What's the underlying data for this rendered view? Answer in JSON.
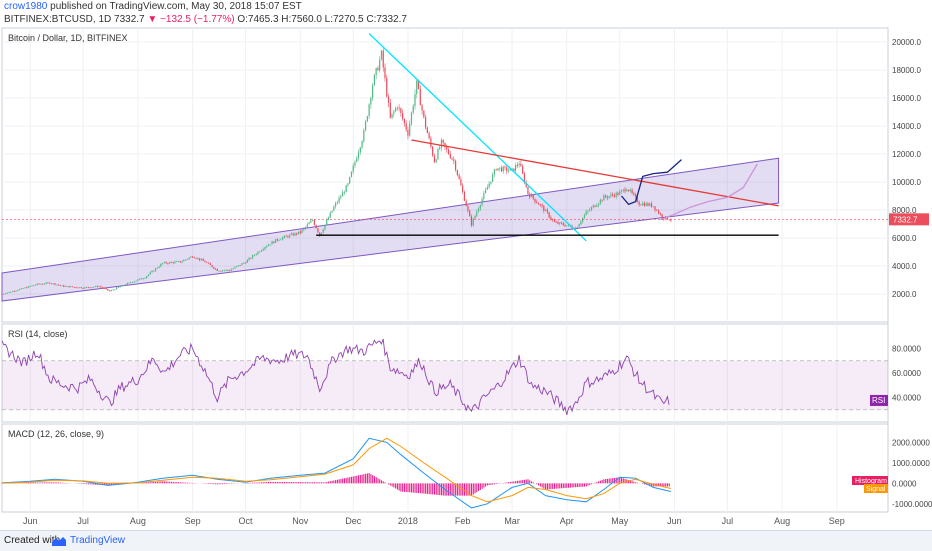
{
  "header": {
    "author": "crow1980",
    "published_text": "published on TradingView.com, May 30, 2018 15:07 EST",
    "symbol": "BITFINEX:BTCUSD, 1D",
    "last": "7332.7",
    "change": "−132.5 (−1.77%)",
    "ohlc": "O:7465.3 H:7560.0 L:7270.5 C:7332.7"
  },
  "footer": {
    "created_with": "Created with",
    "brand": "TradingView"
  },
  "chart_data": [
    {
      "type": "candlestick",
      "title": "Bitcoin / Dollar, 1D, BITFINEX",
      "ylim": [
        0,
        21000
      ],
      "y_ticks": [
        "2000.0",
        "4000.0",
        "6000.0",
        "8000.0",
        "10000.0",
        "12000.0",
        "14000.0",
        "16000.0",
        "18000.0",
        "20000.0"
      ],
      "last_price_label": "7332.7",
      "grid": true,
      "close_path": {
        "x": [
          "2017-05-16",
          "2017-05-25",
          "2017-06-05",
          "2017-06-12",
          "2017-06-20",
          "2017-07-01",
          "2017-07-10",
          "2017-07-16",
          "2017-07-25",
          "2017-08-05",
          "2017-08-15",
          "2017-08-25",
          "2017-09-01",
          "2017-09-08",
          "2017-09-15",
          "2017-09-22",
          "2017-10-01",
          "2017-10-12",
          "2017-10-20",
          "2017-11-01",
          "2017-11-08",
          "2017-11-12",
          "2017-11-20",
          "2017-11-28",
          "2017-12-07",
          "2017-12-12",
          "2017-12-17",
          "2017-12-22",
          "2017-12-26",
          "2018-01-01",
          "2018-01-06",
          "2018-01-10",
          "2018-01-16",
          "2018-01-20",
          "2018-01-27",
          "2018-02-02",
          "2018-02-06",
          "2018-02-12",
          "2018-02-20",
          "2018-03-01",
          "2018-03-05",
          "2018-03-10",
          "2018-03-18",
          "2018-03-25",
          "2018-04-01",
          "2018-04-06",
          "2018-04-12",
          "2018-04-22",
          "2018-05-01",
          "2018-05-05",
          "2018-05-12",
          "2018-05-20",
          "2018-05-25",
          "2018-05-30"
        ],
        "y": [
          2000,
          2300,
          2700,
          2800,
          2550,
          2450,
          2550,
          2200,
          2700,
          3200,
          4200,
          4300,
          4700,
          4300,
          3700,
          3700,
          4300,
          5400,
          5950,
          6400,
          7300,
          6200,
          8200,
          9800,
          13500,
          17000,
          19100,
          14500,
          15500,
          13500,
          17000,
          14500,
          11500,
          12800,
          11500,
          8800,
          7000,
          8800,
          11000,
          10800,
          11400,
          9200,
          8200,
          7100,
          6900,
          6700,
          7800,
          8900,
          9200,
          9600,
          8500,
          8300,
          7500,
          7330
        ]
      },
      "channel": {
        "lower": {
          "x": [
            "2017-05-16",
            "2018-07-30"
          ],
          "y": [
            1500,
            8500
          ]
        },
        "upper": {
          "x": [
            "2017-05-16",
            "2018-07-30"
          ],
          "y": [
            3500,
            11700
          ]
        }
      },
      "trendlines": [
        {
          "color": "#00e5ff",
          "x": [
            "2017-12-10",
            "2018-04-12"
          ],
          "y": [
            20600,
            5800
          ]
        },
        {
          "color": "#e53935",
          "x": [
            "2018-01-03",
            "2018-07-30"
          ],
          "y": [
            13000,
            8300
          ]
        },
        {
          "color": "#000000",
          "x": [
            "2017-11-10",
            "2018-07-30"
          ],
          "y": [
            6200,
            6200
          ]
        }
      ],
      "projections": [
        {
          "color": "#1a237e",
          "x": [
            "2018-05-02",
            "2018-05-06",
            "2018-05-10",
            "2018-05-14",
            "2018-05-20",
            "2018-05-28",
            "2018-06-05"
          ],
          "y": [
            9000,
            8400,
            8600,
            10400,
            10600,
            10700,
            11600
          ]
        },
        {
          "color": "#ce93d8",
          "x": [
            "2018-05-24",
            "2018-06-01",
            "2018-06-10",
            "2018-06-20",
            "2018-07-01",
            "2018-07-10",
            "2018-07-18"
          ],
          "y": [
            7300,
            7700,
            8200,
            8600,
            8900,
            9600,
            11300
          ]
        }
      ]
    },
    {
      "type": "line",
      "title": "RSI (14, close)",
      "ylim": [
        20,
        100
      ],
      "y_ticks": [
        "40.0000",
        "60.0000",
        "80.0000"
      ],
      "badge": "RSI",
      "bands": [
        30,
        70
      ],
      "series": [
        {
          "x": [
            "2017-05-16",
            "2017-05-22",
            "2017-05-28",
            "2017-06-05",
            "2017-06-12",
            "2017-06-20",
            "2017-06-28",
            "2017-07-05",
            "2017-07-12",
            "2017-07-16",
            "2017-07-22",
            "2017-08-01",
            "2017-08-10",
            "2017-08-16",
            "2017-08-25",
            "2017-09-01",
            "2017-09-08",
            "2017-09-15",
            "2017-09-22",
            "2017-10-01",
            "2017-10-10",
            "2017-10-20",
            "2017-10-28",
            "2017-11-05",
            "2017-11-12",
            "2017-11-20",
            "2017-11-28",
            "2017-12-07",
            "2017-12-17",
            "2017-12-22",
            "2018-01-01",
            "2018-01-08",
            "2018-01-16",
            "2018-01-25",
            "2018-02-06",
            "2018-02-15",
            "2018-02-20",
            "2018-03-01",
            "2018-03-05",
            "2018-03-12",
            "2018-03-20",
            "2018-04-01",
            "2018-04-06",
            "2018-04-12",
            "2018-04-20",
            "2018-04-26",
            "2018-05-05",
            "2018-05-12",
            "2018-05-20",
            "2018-05-25",
            "2018-05-30"
          ],
          "y": [
            82,
            75,
            68,
            78,
            55,
            50,
            48,
            55,
            42,
            35,
            48,
            55,
            72,
            60,
            75,
            80,
            62,
            40,
            55,
            62,
            72,
            70,
            75,
            74,
            48,
            72,
            80,
            78,
            88,
            65,
            58,
            70,
            45,
            50,
            28,
            42,
            48,
            64,
            72,
            50,
            45,
            30,
            35,
            52,
            55,
            60,
            72,
            54,
            42,
            35,
            38
          ]
        }
      ]
    },
    {
      "type": "line",
      "title": "MACD (12, 26, close, 9)",
      "ylim": [
        -1400,
        2900
      ],
      "y_ticks": [
        "-1000.0000",
        "0.0000",
        "1000.0000",
        "2000.0000"
      ],
      "badges": [
        "Histogram",
        "Signal"
      ],
      "series": [
        {
          "name": "MACD",
          "x": [
            "2017-05-16",
            "2017-06-01",
            "2017-06-15",
            "2017-07-01",
            "2017-07-15",
            "2017-08-01",
            "2017-08-15",
            "2017-09-01",
            "2017-09-15",
            "2017-10-01",
            "2017-10-15",
            "2017-11-01",
            "2017-11-15",
            "2017-12-01",
            "2017-12-10",
            "2017-12-20",
            "2017-12-28",
            "2018-01-10",
            "2018-01-22",
            "2018-02-06",
            "2018-02-15",
            "2018-03-01",
            "2018-03-10",
            "2018-03-20",
            "2018-04-01",
            "2018-04-12",
            "2018-04-22",
            "2018-05-01",
            "2018-05-10",
            "2018-05-20",
            "2018-05-30"
          ],
          "y": [
            20,
            100,
            200,
            100,
            -100,
            50,
            250,
            400,
            200,
            50,
            250,
            400,
            500,
            1200,
            2200,
            2000,
            1400,
            500,
            -300,
            -1200,
            -1000,
            -200,
            0,
            -600,
            -800,
            -900,
            -300,
            300,
            250,
            -200,
            -400
          ]
        },
        {
          "name": "Signal",
          "x": [
            "2017-05-16",
            "2017-06-01",
            "2017-06-15",
            "2017-07-01",
            "2017-07-15",
            "2017-08-01",
            "2017-08-15",
            "2017-09-01",
            "2017-09-15",
            "2017-10-01",
            "2017-10-15",
            "2017-11-01",
            "2017-11-15",
            "2017-12-01",
            "2017-12-10",
            "2017-12-20",
            "2017-12-28",
            "2018-01-10",
            "2018-01-22",
            "2018-02-06",
            "2018-02-15",
            "2018-03-01",
            "2018-03-10",
            "2018-03-20",
            "2018-04-01",
            "2018-04-12",
            "2018-04-22",
            "2018-05-01",
            "2018-05-10",
            "2018-05-20",
            "2018-05-30"
          ],
          "y": [
            0,
            60,
            150,
            120,
            0,
            20,
            150,
            300,
            250,
            100,
            180,
            320,
            450,
            900,
            1700,
            2200,
            1800,
            1000,
            300,
            -600,
            -900,
            -600,
            -200,
            -300,
            -600,
            -750,
            -500,
            0,
            200,
            -50,
            -250
          ]
        }
      ],
      "histogram": {
        "x": [
          "2017-05-16",
          "2017-06-15",
          "2017-07-15",
          "2017-08-15",
          "2017-09-15",
          "2017-10-15",
          "2017-11-15",
          "2017-12-10",
          "2017-12-28",
          "2018-01-10",
          "2018-01-22",
          "2018-02-06",
          "2018-02-15",
          "2018-03-10",
          "2018-03-20",
          "2018-04-12",
          "2018-04-22",
          "2018-05-01",
          "2018-05-10",
          "2018-05-20",
          "2018-05-30"
        ],
        "y": [
          20,
          50,
          -100,
          100,
          -50,
          70,
          50,
          500,
          -400,
          -500,
          -600,
          -600,
          -100,
          200,
          -300,
          -150,
          200,
          300,
          50,
          -150,
          -150
        ]
      }
    }
  ],
  "x_ticks": [
    "Jun",
    "Jul",
    "Aug",
    "Sep",
    "Oct",
    "Nov",
    "Dec",
    "2018",
    "Feb",
    "Mar",
    "Apr",
    "May",
    "Jun",
    "Jul",
    "Aug",
    "Sep"
  ]
}
